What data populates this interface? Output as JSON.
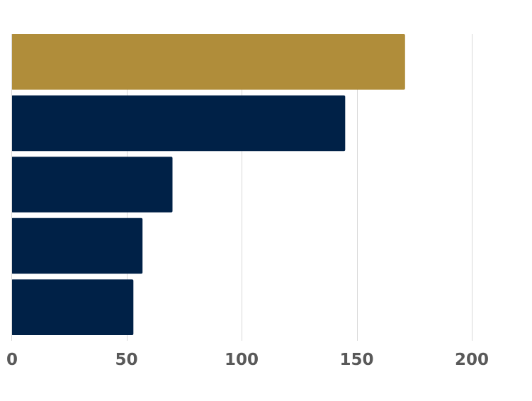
{
  "chart_data": {
    "type": "bar",
    "orientation": "horizontal",
    "title": "",
    "xlabel": "",
    "ylabel": "",
    "xlim": [
      0,
      200
    ],
    "x_ticks": [
      0,
      50,
      100,
      150,
      200
    ],
    "x_tick_labels": [
      "0",
      "50",
      "100",
      "150",
      "200"
    ],
    "grid": true,
    "values": [
      171,
      145,
      70,
      57,
      53
    ],
    "bar_colors": [
      "#b08d3a",
      "#002147",
      "#002147",
      "#002147",
      "#002147"
    ],
    "highlight_color": "#b08d3a",
    "base_color": "#002147"
  }
}
